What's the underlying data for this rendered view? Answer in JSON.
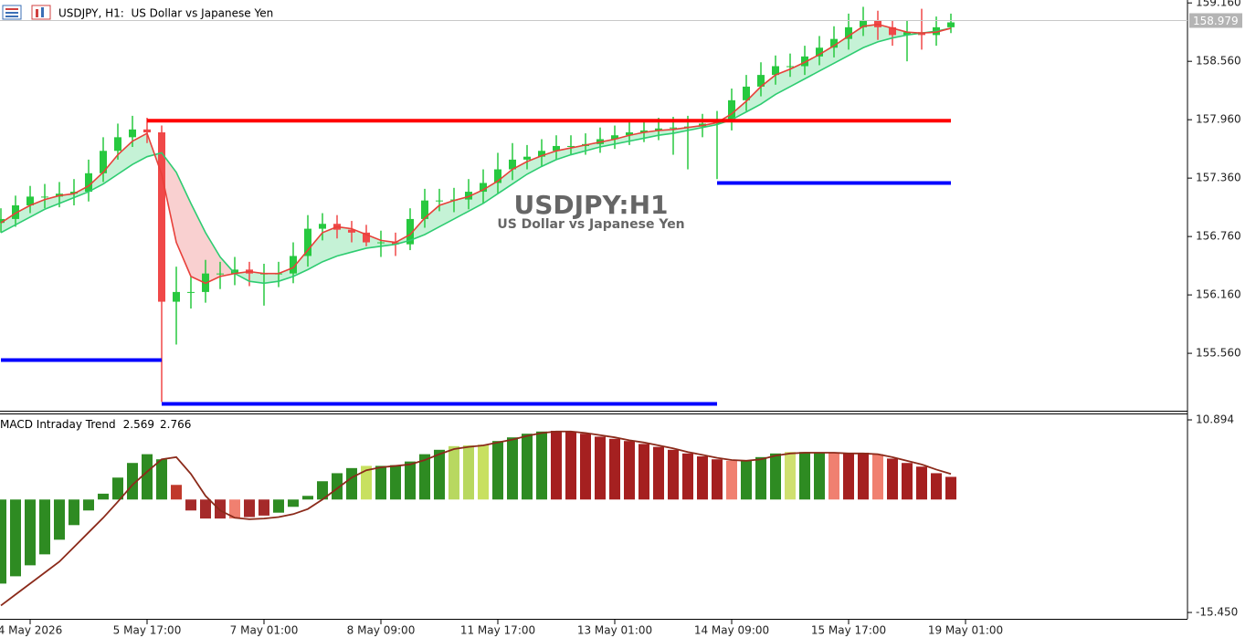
{
  "chart_data": [
    {
      "type": "candlestick",
      "header": "USDJPY, H1:  US Dollar vs Japanese Yen",
      "watermark_title": "USDJPY:H1",
      "watermark_subtitle": "US Dollar vs Japanese Yen",
      "categories": [
        null,
        null,
        "4 May 2026",
        null,
        null,
        null,
        null,
        null,
        null,
        null,
        "5 May 17:00",
        null,
        null,
        null,
        null,
        null,
        null,
        null,
        "7 May 01:00",
        null,
        null,
        null,
        null,
        null,
        null,
        null,
        "8 May 09:00",
        null,
        null,
        null,
        null,
        null,
        null,
        null,
        "11 May 17:00",
        null,
        null,
        null,
        null,
        null,
        null,
        null,
        "13 May 01:00",
        null,
        null,
        null,
        null,
        null,
        null,
        null,
        "14 May 09:00",
        null,
        null,
        null,
        null,
        null,
        null,
        null,
        "15 May 17:00",
        null,
        null,
        null,
        null,
        null,
        null,
        null,
        "19 May 01:00"
      ],
      "open": [
        156.9,
        156.94,
        157.08,
        157.17,
        157.17,
        157.2,
        157.22,
        157.41,
        157.64,
        157.78,
        157.86,
        157.83,
        156.09,
        156.19,
        156.19,
        156.38,
        156.38,
        156.42,
        156.38,
        156.38,
        156.38,
        156.56,
        156.84,
        156.89,
        156.83,
        156.8,
        156.7,
        156.7,
        156.68,
        156.94,
        157.13,
        157.13,
        157.14,
        157.22,
        157.31,
        157.45,
        157.55,
        157.58,
        157.64,
        157.69,
        157.69,
        157.71,
        157.76,
        157.8,
        157.83,
        157.85,
        157.87,
        157.88,
        157.89,
        157.92,
        157.95,
        158.16,
        158.3,
        158.42,
        158.51,
        158.51,
        158.61,
        158.7,
        158.79,
        158.91,
        158.98,
        158.91,
        158.83,
        158.86,
        158.83,
        158.91,
        null
      ],
      "high": [
        157.05,
        157.18,
        157.28,
        157.3,
        157.32,
        157.35,
        157.55,
        157.78,
        157.92,
        158.0,
        157.98,
        157.9,
        156.45,
        156.35,
        156.52,
        156.5,
        156.55,
        156.5,
        156.48,
        156.5,
        156.7,
        156.98,
        157.0,
        156.98,
        156.92,
        156.88,
        156.82,
        156.8,
        157.05,
        157.25,
        157.25,
        157.26,
        157.35,
        157.45,
        157.62,
        157.72,
        157.7,
        157.76,
        157.8,
        157.8,
        157.82,
        157.88,
        157.9,
        157.94,
        157.96,
        157.98,
        157.99,
        158.0,
        158.02,
        158.05,
        158.28,
        158.42,
        158.55,
        158.62,
        158.64,
        158.72,
        158.82,
        158.92,
        159.05,
        159.12,
        159.08,
        158.98,
        158.98,
        159.1,
        159.02,
        159.05,
        null
      ],
      "low": [
        156.8,
        156.86,
        157.0,
        157.05,
        157.06,
        157.08,
        157.12,
        157.32,
        157.55,
        157.68,
        157.72,
        155.06,
        155.65,
        156.02,
        156.08,
        156.22,
        156.26,
        156.25,
        156.05,
        156.24,
        156.28,
        156.45,
        156.72,
        156.74,
        156.7,
        156.66,
        156.55,
        156.56,
        156.62,
        156.85,
        157.02,
        157.01,
        157.04,
        157.1,
        157.2,
        157.34,
        157.45,
        157.48,
        157.55,
        157.6,
        157.6,
        157.62,
        157.66,
        157.7,
        157.73,
        157.75,
        157.6,
        157.45,
        157.78,
        157.35,
        157.85,
        158.05,
        158.2,
        158.32,
        158.4,
        158.42,
        158.52,
        158.6,
        158.68,
        158.82,
        158.78,
        158.72,
        158.56,
        158.68,
        158.72,
        158.85,
        null
      ],
      "close": [
        156.94,
        157.08,
        157.17,
        157.17,
        157.2,
        157.22,
        157.41,
        157.64,
        157.78,
        157.86,
        157.83,
        156.09,
        156.19,
        156.19,
        156.38,
        156.38,
        156.42,
        156.38,
        156.38,
        156.38,
        156.56,
        156.84,
        156.89,
        156.83,
        156.8,
        156.7,
        156.7,
        156.68,
        156.94,
        157.13,
        157.13,
        157.14,
        157.22,
        157.31,
        157.45,
        157.55,
        157.58,
        157.64,
        157.69,
        157.69,
        157.71,
        157.76,
        157.8,
        157.83,
        157.85,
        157.87,
        157.88,
        157.89,
        157.92,
        157.95,
        158.16,
        158.3,
        158.42,
        158.51,
        158.51,
        158.61,
        158.7,
        158.79,
        158.91,
        158.98,
        158.91,
        158.83,
        158.86,
        158.83,
        158.91,
        158.96,
        null
      ],
      "up_color": "#27c93f",
      "down_color": "#f04848",
      "fast_ma": {
        "color": "#e8403a",
        "values": [
          156.9,
          157.0,
          157.08,
          157.14,
          157.18,
          157.2,
          157.28,
          157.42,
          157.6,
          157.74,
          157.82,
          157.4,
          156.7,
          156.35,
          156.28,
          156.35,
          156.38,
          156.4,
          156.38,
          156.38,
          156.44,
          156.62,
          156.8,
          156.86,
          156.84,
          156.78,
          156.72,
          156.7,
          156.78,
          156.95,
          157.08,
          157.13,
          157.17,
          157.24,
          157.33,
          157.45,
          157.53,
          157.59,
          157.64,
          157.67,
          157.7,
          157.73,
          157.76,
          157.8,
          157.83,
          157.85,
          157.86,
          157.88,
          157.9,
          157.93,
          158.02,
          158.15,
          158.3,
          158.42,
          158.48,
          158.55,
          158.63,
          158.72,
          158.82,
          158.92,
          158.94,
          158.9,
          158.86,
          158.85,
          158.86,
          158.9,
          null
        ]
      },
      "slow_ma": {
        "color": "#2ecc71",
        "values": [
          156.8,
          156.88,
          156.96,
          157.04,
          157.1,
          157.16,
          157.22,
          157.3,
          157.4,
          157.5,
          157.58,
          157.62,
          157.42,
          157.1,
          156.8,
          156.55,
          156.38,
          156.3,
          156.28,
          156.3,
          156.35,
          156.42,
          156.5,
          156.56,
          156.6,
          156.64,
          156.66,
          156.68,
          156.72,
          156.78,
          156.86,
          156.94,
          157.02,
          157.1,
          157.2,
          157.3,
          157.4,
          157.48,
          157.55,
          157.6,
          157.64,
          157.68,
          157.71,
          157.74,
          157.77,
          157.8,
          157.82,
          157.85,
          157.88,
          157.91,
          157.96,
          158.04,
          158.12,
          158.22,
          158.3,
          158.38,
          158.46,
          158.54,
          158.62,
          158.7,
          158.76,
          158.8,
          158.83,
          158.85,
          158.87,
          158.9,
          null
        ]
      },
      "fill_up_color": "#b6efcc",
      "fill_down_color": "#f7c4c4",
      "levels": [
        {
          "value": 157.95,
          "color": "#ff0000",
          "start": 10,
          "end": 65
        },
        {
          "value": 155.49,
          "color": "#0000ff",
          "start": 0,
          "end": 11
        },
        {
          "value": 155.04,
          "color": "#0000ff",
          "start": 11,
          "end": 49
        },
        {
          "value": 157.31,
          "color": "#0000ff",
          "start": 49,
          "end": 65
        }
      ],
      "last_price": 158.979,
      "ylim": [
        154.97,
        159.19
      ],
      "yticks": [
        {
          "value": 159.16,
          "label": "159.160"
        },
        {
          "value": 158.56,
          "label": "158.560"
        },
        {
          "value": 157.96,
          "label": "157.960"
        },
        {
          "value": 157.36,
          "label": "157.360"
        },
        {
          "value": 156.76,
          "label": "156.760"
        },
        {
          "value": 156.16,
          "label": "156.160"
        },
        {
          "value": 155.56,
          "label": "155.560"
        }
      ]
    },
    {
      "type": "histogram-macd",
      "title": "MACD Intraday Trend",
      "indicator_values": [
        2.569,
        2.766
      ],
      "values": [
        -11.5,
        -10.5,
        -9,
        -7.5,
        -5.5,
        -3.5,
        -1.5,
        0.8,
        3,
        5,
        6.2,
        5.5,
        2,
        -1.5,
        -2.6,
        -2.6,
        -2.6,
        -2.4,
        -2.2,
        -1.8,
        -1,
        0.5,
        2.5,
        3.6,
        4.3,
        4.6,
        4.6,
        4.7,
        5.2,
        6.2,
        6.8,
        7.3,
        7.4,
        7.5,
        8,
        8.5,
        9,
        9.3,
        9.4,
        9.3,
        9,
        8.6,
        8.3,
        8,
        7.6,
        7.2,
        6.8,
        6.3,
        5.9,
        5.5,
        5.3,
        5.4,
        5.8,
        6.3,
        6.5,
        6.5,
        6.4,
        6.4,
        6.3,
        6.4,
        6.2,
        5.6,
        5,
        4.5,
        3.6,
        3.1,
        null
      ],
      "colors": [
        "#2e8b22",
        "#2e8b22",
        "#2e8b22",
        "#2e8b22",
        "#2e8b22",
        "#2e8b22",
        "#2e8b22",
        "#2e8b22",
        "#2e8b22",
        "#2e8b22",
        "#2e8b22",
        "#2e8b22",
        "#c0392b",
        "#a52a2a",
        "#a52a2a",
        "#a52a2a",
        "#f08070",
        "#a52a2a",
        "#a52a2a",
        "#2e8b22",
        "#2e8b22",
        "#2e8b22",
        "#2e8b22",
        "#2e8b22",
        "#2e8b22",
        "#c8e060",
        "#2e8b22",
        "#2e8b22",
        "#2e8b22",
        "#2e8b22",
        "#2e8b22",
        "#b8d860",
        "#b8d860",
        "#c8e060",
        "#2e8b22",
        "#2e8b22",
        "#2e8b22",
        "#2e8b22",
        "#a52020",
        "#a52020",
        "#a52020",
        "#a52020",
        "#a52020",
        "#a52020",
        "#a52020",
        "#a52020",
        "#a52020",
        "#a52020",
        "#a52020",
        "#a52020",
        "#f08070",
        "#2e8b22",
        "#2e8b22",
        "#2e8b22",
        "#d0e070",
        "#2e8b22",
        "#2e8b22",
        "#f08070",
        "#a52020",
        "#a52020",
        "#f08070",
        "#a52020",
        "#a52020",
        "#a52020",
        "#a52020",
        "#a52020",
        null
      ],
      "signal": {
        "color": "#8b2a1a",
        "values": [
          -14.5,
          -13,
          -11.5,
          -10,
          -8.5,
          -6.5,
          -4.5,
          -2.5,
          -0.3,
          2,
          3.8,
          5.5,
          5.8,
          3.5,
          0.5,
          -1.5,
          -2.5,
          -2.7,
          -2.6,
          -2.4,
          -2,
          -1.3,
          0,
          1.5,
          3,
          4,
          4.4,
          4.6,
          4.8,
          5.4,
          6.2,
          6.9,
          7.2,
          7.4,
          7.8,
          8.2,
          8.7,
          9.1,
          9.3,
          9.3,
          9.1,
          8.8,
          8.5,
          8.1,
          7.8,
          7.4,
          7,
          6.5,
          6.1,
          5.7,
          5.4,
          5.3,
          5.5,
          6,
          6.3,
          6.4,
          6.4,
          6.4,
          6.3,
          6.3,
          6.2,
          5.8,
          5.3,
          4.8,
          4.1,
          3.5,
          null
        ]
      },
      "ylim": [
        -16.32,
        11.77
      ],
      "yticks": [
        10.894,
        {
          "value": -15.45,
          "label": "-15.450"
        }
      ]
    }
  ]
}
